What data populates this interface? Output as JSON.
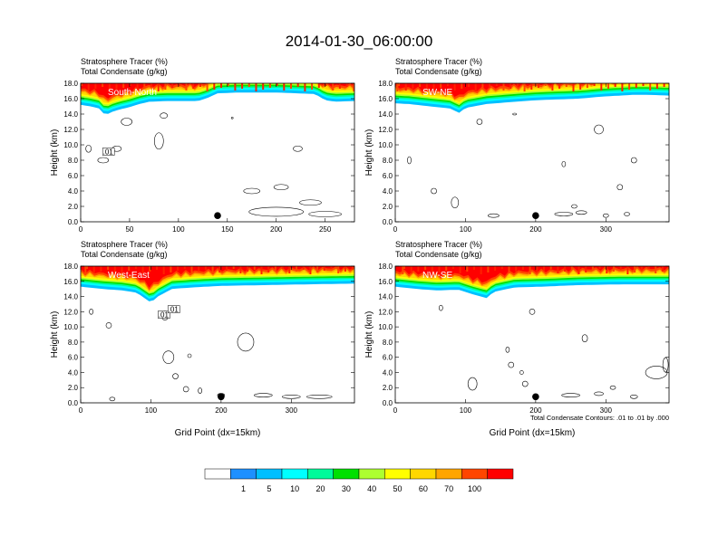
{
  "title": "2014-01-30_06:00:00",
  "chart_data": {
    "type": "heatmap",
    "panels": [
      {
        "label": "South-North",
        "subtitle_1": "Stratosphere Tracer   (%)",
        "subtitle_2": "Total Condensate   (g/kg)",
        "ylabel": "Height (km)",
        "xlabel": "",
        "xlim": [
          0,
          280
        ],
        "xticks": [
          0,
          50,
          100,
          150,
          200,
          250
        ],
        "ylim": [
          0,
          18
        ],
        "yticks": [
          "0.0",
          "2.0",
          "4.0",
          "6.0",
          "8.0",
          "10.0",
          "12.0",
          "14.0",
          "16.0",
          "18.0"
        ],
        "tropopause_km": [
          [
            0,
            15.2
          ],
          [
            10,
            15.0
          ],
          [
            20,
            14.7
          ],
          [
            25,
            13.8
          ],
          [
            30,
            14.2
          ],
          [
            40,
            14.6
          ],
          [
            50,
            14.9
          ],
          [
            60,
            15.3
          ],
          [
            70,
            15.6
          ],
          [
            90,
            15.7
          ],
          [
            120,
            15.7
          ],
          [
            130,
            16.1
          ],
          [
            140,
            16.7
          ],
          [
            160,
            16.8
          ],
          [
            200,
            16.8
          ],
          [
            240,
            16.6
          ],
          [
            250,
            15.8
          ],
          [
            260,
            15.6
          ],
          [
            280,
            15.7
          ]
        ],
        "contour_labels": [
          ".01"
        ],
        "marker_x": 140,
        "caption": ""
      },
      {
        "label": "SW-NE",
        "subtitle_1": "Stratosphere Tracer   (%)",
        "subtitle_2": "Total Condensate   (g/kg)",
        "ylabel": "Height (km)",
        "xlabel": "",
        "xlim": [
          0,
          390
        ],
        "xticks": [
          0,
          100,
          200,
          300
        ],
        "ylim": [
          0,
          18
        ],
        "yticks": [
          "0.0",
          "2.0",
          "4.0",
          "6.0",
          "8.0",
          "10.0",
          "12.0",
          "14.0",
          "16.0",
          "18.0"
        ],
        "tropopause_km": [
          [
            0,
            15.4
          ],
          [
            20,
            15.3
          ],
          [
            40,
            15.1
          ],
          [
            60,
            14.9
          ],
          [
            80,
            14.7
          ],
          [
            90,
            14.1
          ],
          [
            100,
            14.8
          ],
          [
            130,
            15.3
          ],
          [
            170,
            15.6
          ],
          [
            200,
            15.8
          ],
          [
            260,
            16.0
          ],
          [
            300,
            16.3
          ],
          [
            340,
            16.5
          ],
          [
            360,
            16.5
          ],
          [
            390,
            16.4
          ]
        ],
        "contour_labels": [],
        "marker_x": 200,
        "caption": ""
      },
      {
        "label": "West-East",
        "subtitle_1": "Stratosphere Tracer   (%)",
        "subtitle_2": "Total Condensate   (g/kg)",
        "ylabel": "Height (km)",
        "xlabel": "Grid Point (dx=15km)",
        "xlim": [
          0,
          390
        ],
        "xticks": [
          0,
          100,
          200,
          300
        ],
        "ylim": [
          0,
          18
        ],
        "yticks": [
          "0.0",
          "2.0",
          "4.0",
          "6.0",
          "8.0",
          "10.0",
          "12.0",
          "14.0",
          "16.0",
          "18.0"
        ],
        "tropopause_km": [
          [
            0,
            15.3
          ],
          [
            30,
            15.0
          ],
          [
            60,
            14.8
          ],
          [
            80,
            14.5
          ],
          [
            100,
            13.2
          ],
          [
            110,
            14.0
          ],
          [
            130,
            15.0
          ],
          [
            160,
            15.2
          ],
          [
            200,
            15.4
          ],
          [
            260,
            15.5
          ],
          [
            320,
            15.6
          ],
          [
            390,
            15.7
          ]
        ],
        "contour_labels": [
          ".01",
          ".01"
        ],
        "marker_x": 200,
        "caption": ""
      },
      {
        "label": "NW-SE",
        "subtitle_1": "Stratosphere Tracer   (%)",
        "subtitle_2": "Total Condensate   (g/kg)",
        "ylabel": "Height (km)",
        "xlabel": "Grid Point (dx=15km)",
        "xlim": [
          0,
          390
        ],
        "xticks": [
          0,
          100,
          200,
          300
        ],
        "ylim": [
          0,
          18
        ],
        "yticks": [
          "0.0",
          "2.0",
          "4.0",
          "6.0",
          "8.0",
          "10.0",
          "12.0",
          "14.0",
          "16.0",
          "18.0"
        ],
        "tropopause_km": [
          [
            0,
            15.3
          ],
          [
            30,
            15.0
          ],
          [
            60,
            14.8
          ],
          [
            90,
            14.9
          ],
          [
            110,
            14.3
          ],
          [
            130,
            13.8
          ],
          [
            140,
            14.6
          ],
          [
            170,
            15.2
          ],
          [
            210,
            15.3
          ],
          [
            260,
            15.5
          ],
          [
            320,
            15.6
          ],
          [
            390,
            15.6
          ]
        ],
        "contour_labels": [],
        "marker_x": 200,
        "caption": "Total Condensate Contours: .01 to .01 by .000"
      }
    ],
    "colorbar": {
      "labels": [
        "1",
        "5",
        "10",
        "20",
        "30",
        "40",
        "50",
        "60",
        "70",
        "100"
      ],
      "colors": [
        "#ffffff",
        "#1e90ff",
        "#00bfff",
        "#00ffff",
        "#00fa9a",
        "#00e000",
        "#adff2f",
        "#ffff00",
        "#ffd700",
        "#ffa500",
        "#ff4500",
        "#ff0000"
      ]
    }
  }
}
